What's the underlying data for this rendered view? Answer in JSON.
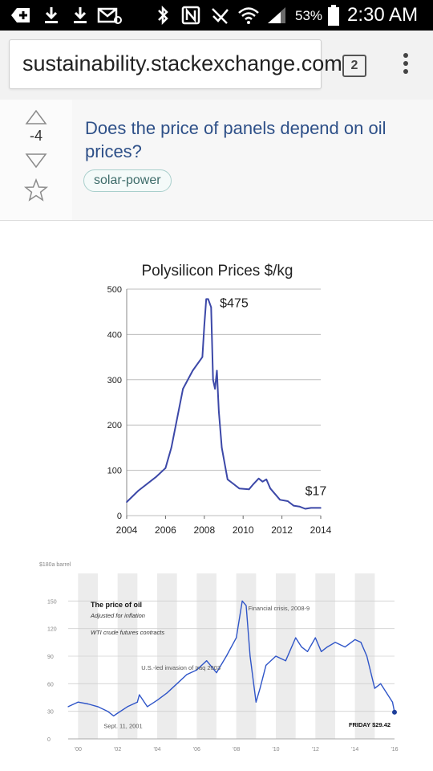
{
  "status_bar": {
    "battery_percent": "53%",
    "time": "2:30 AM",
    "icons": [
      "add-box-icon",
      "download-icon",
      "download-icon",
      "email-icon",
      "bluetooth-icon",
      "nfc-icon",
      "mute-icon",
      "wifi-icon",
      "signal-icon",
      "battery-icon"
    ]
  },
  "browser": {
    "url": "sustainability.stackexchange.com",
    "tab_count": "2",
    "menu_icon": "overflow-menu-icon"
  },
  "question": {
    "score": "-4",
    "title": "Does the price of panels depend on oil prices?",
    "tag": "solar-power",
    "icons": [
      "upvote-icon",
      "downvote-icon",
      "favorite-star-icon"
    ]
  },
  "chart_data": [
    {
      "type": "line",
      "title": "Polysilicon Prices $/kg",
      "xlabel": "",
      "ylabel": "",
      "xlim": [
        2004,
        2014
      ],
      "ylim": [
        0,
        500
      ],
      "xticks": [
        2004,
        2006,
        2008,
        2010,
        2012,
        2014
      ],
      "yticks": [
        0,
        100,
        200,
        300,
        400,
        500
      ],
      "grid": true,
      "color": "#3c48a8",
      "x": [
        2004,
        2004.6,
        2005.5,
        2006,
        2006.3,
        2006.9,
        2007.4,
        2007.9,
        2008.0,
        2008.1,
        2008.2,
        2008.35,
        2008.45,
        2008.55,
        2008.65,
        2008.75,
        2008.9,
        2009.2,
        2009.5,
        2009.8,
        2010.3,
        2010.5,
        2010.8,
        2011.0,
        2011.2,
        2011.4,
        2011.6,
        2011.9,
        2012.3,
        2012.6,
        2012.9,
        2013.2,
        2013.5,
        2014
      ],
      "y": [
        30,
        55,
        85,
        105,
        150,
        280,
        320,
        350,
        420,
        478,
        478,
        460,
        300,
        280,
        320,
        230,
        150,
        80,
        70,
        60,
        58,
        68,
        82,
        75,
        80,
        60,
        50,
        35,
        32,
        22,
        20,
        15,
        17,
        17
      ],
      "annotations": [
        {
          "text": "$475",
          "x": 2008.8,
          "y": 460
        },
        {
          "text": "$17",
          "x": 2013.2,
          "y": 45
        }
      ]
    },
    {
      "type": "line",
      "title": "The price of oil",
      "subtitle": "Adjusted for inflation",
      "note": "WTI crude futures contracts",
      "ylabel": "$180a barrel",
      "xlim": [
        1999.5,
        2016
      ],
      "ylim": [
        0,
        180
      ],
      "xticks": [
        2000,
        2002,
        2004,
        2006,
        2008,
        2010,
        2012,
        2014,
        2016
      ],
      "xtick_labels": [
        "'00",
        "'02",
        "'04",
        "'06",
        "'08",
        "'10",
        "'12",
        "'14",
        "'16"
      ],
      "yticks": [
        0,
        30,
        60,
        90,
        120,
        150
      ],
      "grid": true,
      "color": "#2f55c8",
      "x": [
        1999.5,
        2000,
        2000.5,
        2001,
        2001.5,
        2001.8,
        2002,
        2002.5,
        2003,
        2003.1,
        2003.5,
        2004,
        2004.5,
        2005,
        2005.5,
        2006,
        2006.5,
        2007,
        2007.5,
        2008,
        2008.3,
        2008.5,
        2008.7,
        2009,
        2009.2,
        2009.5,
        2010,
        2010.5,
        2011,
        2011.3,
        2011.6,
        2012,
        2012.3,
        2012.6,
        2013,
        2013.5,
        2014,
        2014.3,
        2014.6,
        2015,
        2015.3,
        2015.6,
        2015.9,
        2016
      ],
      "y": [
        35,
        40,
        38,
        35,
        30,
        25,
        28,
        35,
        40,
        48,
        35,
        42,
        50,
        60,
        70,
        75,
        85,
        72,
        90,
        110,
        150,
        145,
        90,
        40,
        55,
        80,
        90,
        85,
        110,
        100,
        95,
        110,
        95,
        100,
        105,
        100,
        108,
        105,
        90,
        55,
        60,
        50,
        40,
        29
      ],
      "annotations": [
        {
          "text": "Financial crisis, 2008-9",
          "x": 2008.6,
          "y": 140
        },
        {
          "text": "U.S.-led invasion of Iraq 2003",
          "x": 2003.2,
          "y": 75
        },
        {
          "text": "Sept. 11, 2001",
          "x": 2001.3,
          "y": 12
        },
        {
          "text": "FRIDAY $29.42",
          "x": 2015.8,
          "y": 13
        }
      ],
      "shaded_periods": [
        [
          2000,
          2001
        ],
        [
          2002,
          2003
        ],
        [
          2004,
          2005
        ],
        [
          2006,
          2007
        ],
        [
          2008,
          2009
        ],
        [
          2010,
          2011
        ],
        [
          2012,
          2013
        ],
        [
          2014,
          2015
        ]
      ]
    }
  ]
}
